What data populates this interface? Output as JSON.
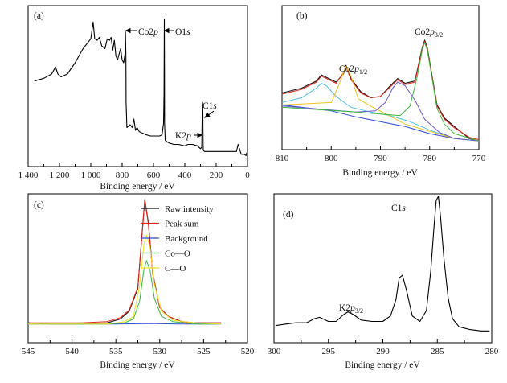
{
  "chart_data": [
    {
      "panel": "(a)",
      "type": "line",
      "xlabel": "Binding energy / eV",
      "ylabel": "",
      "xlim": [
        1400,
        0
      ],
      "x_ticks": [
        "1 400",
        "1 200",
        "1 000",
        "800",
        "600",
        "400",
        "200",
        "0"
      ],
      "annotations": [
        "Co2p",
        "O1s",
        "C1s",
        "K2p"
      ],
      "series": [
        {
          "color": "#000000",
          "x": [
            1360,
            1300,
            1250,
            1225,
            1210,
            1190,
            1150,
            1100,
            1050,
            1000,
            985,
            975,
            960,
            945,
            930,
            910,
            895,
            880,
            870,
            860,
            850,
            840,
            830,
            810,
            800,
            790,
            782,
            779,
            776,
            775,
            770,
            760,
            750,
            735,
            725,
            715,
            705,
            700,
            690,
            670,
            650,
            620,
            600,
            580,
            560,
            545,
            536,
            533,
            531,
            530,
            529,
            525,
            515,
            500,
            470,
            440,
            400,
            380,
            350,
            320,
            300,
            292,
            290,
            287,
            285,
            283,
            282,
            275,
            250,
            200,
            150,
            100,
            80,
            70,
            60,
            40,
            20,
            10,
            5,
            0
          ],
          "y": [
            55,
            57,
            60,
            65,
            60,
            58,
            60,
            68,
            78,
            85,
            97,
            85,
            84,
            86,
            80,
            78,
            85,
            84,
            86,
            77,
            84,
            73,
            70,
            78,
            70,
            68,
            74,
            90,
            72,
            40,
            22,
            23,
            24,
            22,
            28,
            20,
            22,
            21,
            19,
            18,
            17,
            16,
            16,
            16,
            16,
            17,
            25,
            45,
            99,
            60,
            25,
            13,
            12,
            11,
            10,
            10,
            9,
            10,
            10,
            9,
            7,
            8,
            23,
            40,
            36,
            10,
            6,
            5,
            5,
            5,
            5,
            5,
            5,
            5,
            10,
            3,
            3,
            2,
            4,
            4
          ]
        }
      ]
    },
    {
      "panel": "(b)",
      "type": "line",
      "xlabel": "Binding energy / eV",
      "ylabel": "",
      "xlim": [
        810,
        770
      ],
      "x_ticks": [
        "810",
        "800",
        "790",
        "780",
        "770"
      ],
      "annotations": [
        "Co2p1/2",
        "Co2p3/2"
      ],
      "series": [
        {
          "color": "#111111",
          "x": [
            810,
            806,
            803,
            802,
            801,
            799,
            797.5,
            797,
            796,
            794,
            792,
            790,
            788,
            786.5,
            785,
            783,
            781.5,
            781,
            780.5,
            779.5,
            778.5,
            777,
            775,
            772,
            770
          ],
          "y": [
            46,
            50,
            56,
            61,
            59,
            55,
            62,
            69,
            58,
            47,
            42,
            43,
            52,
            58,
            54,
            56,
            84,
            90,
            84,
            60,
            36,
            25,
            18,
            8,
            6
          ]
        },
        {
          "color": "#e8241c",
          "x": [
            810,
            806,
            803,
            802,
            801,
            799,
            797.5,
            797,
            796,
            794,
            792,
            790,
            788,
            786.5,
            785,
            783,
            781.5,
            781,
            780.5,
            779.5,
            778.5,
            777,
            775,
            772,
            770
          ],
          "y": [
            45,
            49,
            55,
            60,
            58,
            54,
            63,
            68,
            57,
            46,
            42,
            43,
            51,
            57,
            53,
            55,
            83,
            89,
            83,
            59,
            35,
            24,
            17,
            9,
            7
          ]
        },
        {
          "color": "#2e4ad6",
          "x": [
            810,
            800,
            795,
            790,
            785,
            780,
            775,
            770
          ],
          "y": [
            36,
            31,
            26,
            22,
            18,
            12,
            8,
            6
          ]
        },
        {
          "color": "#4fc3e6",
          "x": [
            810,
            806,
            803,
            802,
            801,
            799,
            796,
            792,
            788,
            784,
            780,
            775,
            770
          ],
          "y": [
            38,
            42,
            50,
            54,
            52,
            43,
            34,
            30,
            27,
            22,
            15,
            8,
            6
          ]
        },
        {
          "color": "#f0c419",
          "x": [
            810,
            800,
            798.5,
            797.5,
            797,
            796,
            794.5,
            792,
            785,
            775,
            770
          ],
          "y": [
            36,
            38,
            52,
            63,
            68,
            60,
            41,
            35,
            20,
            8,
            6
          ]
        },
        {
          "color": "#6a5acd",
          "x": [
            810,
            795,
            791,
            789,
            787.5,
            786.5,
            785,
            783,
            781,
            778,
            775,
            770
          ],
          "y": [
            35,
            30,
            31,
            38,
            50,
            55,
            52,
            40,
            24,
            13,
            8,
            6
          ]
        },
        {
          "color": "#3cb83c",
          "x": [
            810,
            795,
            786,
            784,
            782.5,
            781.5,
            781,
            780.5,
            779.5,
            778.5,
            777,
            775,
            770
          ],
          "y": [
            34,
            30,
            27,
            35,
            60,
            82,
            88,
            82,
            58,
            33,
            20,
            12,
            6
          ]
        }
      ]
    },
    {
      "panel": "(c)",
      "type": "line",
      "xlabel": "Binding energy / eV",
      "ylabel": "",
      "xlim": [
        545,
        520
      ],
      "x_ticks": [
        "545",
        "540",
        "535",
        "530",
        "525",
        "520"
      ],
      "legend_position": "top-right",
      "series": [
        {
          "name": "Raw intensity",
          "color": "#111111",
          "x": [
            545,
            542,
            539,
            536,
            534.5,
            533.5,
            532.5,
            532,
            531.7,
            531.3,
            530.8,
            530,
            529,
            527.5,
            526,
            524,
            523
          ],
          "y": [
            3,
            2,
            2,
            3,
            6,
            12,
            30,
            75,
            100,
            82,
            42,
            15,
            8,
            4,
            3,
            3,
            3
          ]
        },
        {
          "name": "Peak sum",
          "color": "#e8241c",
          "x": [
            545,
            542,
            539,
            536,
            534.5,
            533.5,
            532.5,
            532,
            531.7,
            531.3,
            530.8,
            530,
            529,
            527.5,
            526,
            524,
            523
          ],
          "y": [
            3,
            3,
            3,
            4,
            7,
            13,
            31,
            74,
            99,
            81,
            41,
            15,
            8,
            4,
            3,
            3,
            3
          ]
        },
        {
          "name": "Background",
          "color": "#2e4ad6",
          "x": [
            545,
            535,
            531,
            528,
            523
          ],
          "y": [
            2,
            2,
            2.5,
            2,
            2
          ]
        },
        {
          "name": "Co—O",
          "color": "#3cb83c",
          "x": [
            545,
            536,
            534,
            533,
            532.3,
            531.8,
            531.5,
            531.1,
            530.6,
            529.8,
            528.5,
            526,
            523
          ],
          "y": [
            2,
            2,
            3,
            6,
            20,
            45,
            52,
            44,
            22,
            8,
            4,
            2,
            2
          ]
        },
        {
          "name": "C—O",
          "color": "#f0e020",
          "x": [
            545,
            536,
            534,
            533,
            532.3,
            531.8,
            531.5,
            531.1,
            530.6,
            529.8,
            528.5,
            526,
            523
          ],
          "y": [
            2,
            2,
            4,
            8,
            32,
            65,
            72,
            62,
            33,
            12,
            5,
            3,
            2
          ]
        }
      ]
    },
    {
      "panel": "(d)",
      "type": "line",
      "xlabel": "Binding energy / eV",
      "ylabel": "",
      "xlim": [
        300,
        280
      ],
      "x_ticks": [
        "300",
        "295",
        "290",
        "285",
        "280"
      ],
      "annotations": [
        "C1s",
        "K2p3/2"
      ],
      "series": [
        {
          "color": "#000000",
          "x": [
            299.8,
            299,
            298,
            297,
            296.3,
            295.8,
            295,
            294.3,
            293.6,
            293.2,
            292.7,
            292,
            291,
            290,
            289.3,
            288.8,
            288.5,
            288.2,
            287.8,
            287.3,
            286.6,
            286,
            285.6,
            285.3,
            285.1,
            284.9,
            284.7,
            284.4,
            284,
            283.6,
            283,
            282,
            281,
            280.2
          ],
          "y": [
            5,
            6,
            7,
            7,
            10,
            11,
            8,
            8,
            13,
            15,
            13,
            9,
            8,
            8,
            12,
            24,
            40,
            42,
            30,
            12,
            8,
            16,
            45,
            78,
            97,
            100,
            85,
            55,
            25,
            10,
            4,
            2,
            1,
            1
          ]
        }
      ]
    }
  ],
  "panels": [
    {
      "letter": "(a)",
      "xlabel": "Binding energy / eV",
      "ticks": [
        "1 400",
        "1 200",
        "1 000",
        "800",
        "600",
        "400",
        "200",
        "0"
      ],
      "annotations": {
        "co2p": "Co2p",
        "o1s": "O1s",
        "c1s": "C1s",
        "k2p": "K2p"
      }
    },
    {
      "letter": "(b)",
      "xlabel": "Binding energy / eV",
      "ticks": [
        "810",
        "800",
        "790",
        "780",
        "770"
      ],
      "annotations": {
        "co2p12": "Co2p1/2",
        "co2p32": "Co2p3/2"
      }
    },
    {
      "letter": "(c)",
      "xlabel": "Binding energy / eV",
      "ticks": [
        "545",
        "540",
        "535",
        "530",
        "525",
        "520"
      ],
      "legend": [
        "Raw intensity",
        "Peak sum",
        "Background",
        "Co—O",
        "C—O"
      ]
    },
    {
      "letter": "(d)",
      "xlabel": "Binding energy / eV",
      "ticks": [
        "300",
        "295",
        "290",
        "285",
        "280"
      ],
      "annotations": {
        "c1s": "C1s",
        "k2p32": "K2p3/2"
      }
    }
  ]
}
